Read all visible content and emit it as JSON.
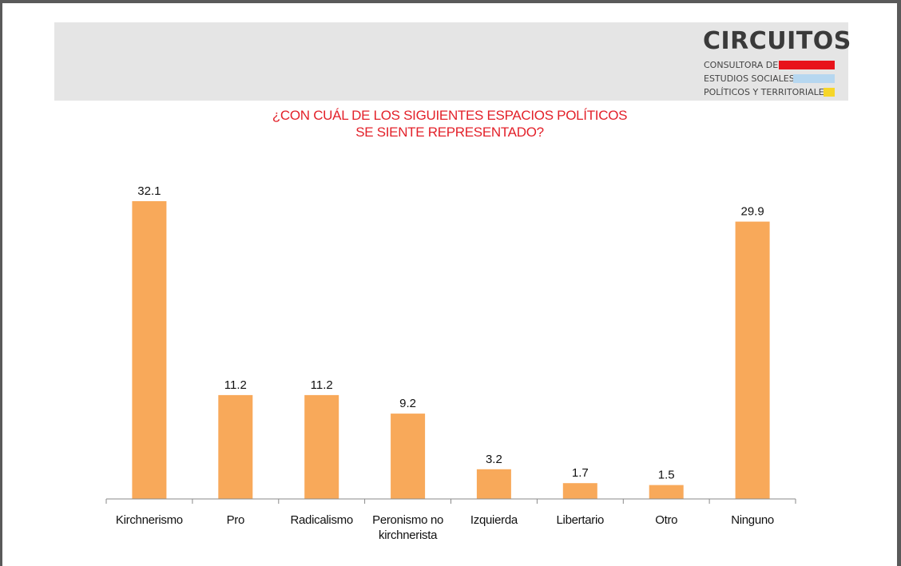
{
  "header": {
    "logo": {
      "title": "CIRCUITOS",
      "line1": "CONSULTORA DE",
      "line2": "ESTUDIOS SOCIALES,",
      "line3": "POLÍTICOS Y TERRITORIALES",
      "colors": [
        "#e8131b",
        "#b6d7f0",
        "#f6d629"
      ]
    }
  },
  "chart_data": {
    "type": "bar",
    "title_lines": [
      "¿CON CUÁL DE LOS SIGUIENTES ESPACIOS POLÍTICOS",
      "SE SIENTE REPRESENTADO?"
    ],
    "categories": [
      [
        "Kirchnerismo"
      ],
      [
        "Pro"
      ],
      [
        "Radicalismo"
      ],
      [
        "Peronismo no",
        "kirchnerista"
      ],
      [
        "Izquierda"
      ],
      [
        "Libertario"
      ],
      [
        "Otro"
      ],
      [
        "Ninguno"
      ]
    ],
    "values": [
      32.1,
      11.2,
      11.2,
      9.2,
      3.2,
      1.7,
      1.5,
      29.9
    ],
    "value_labels": [
      "32.1",
      "11.2",
      "11.2",
      "9.2",
      "3.2",
      "1.7",
      "1.5",
      "29.9"
    ],
    "bar_color": "#f8a95a",
    "title_color": "#e3212a",
    "xlabel": "",
    "ylabel": "",
    "ylim": [
      0,
      32.1
    ],
    "grid": false,
    "legend": "none"
  }
}
